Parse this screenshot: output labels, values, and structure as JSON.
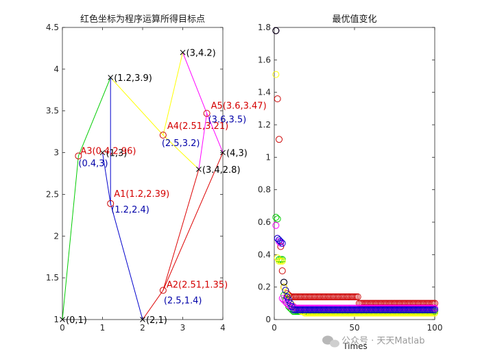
{
  "chart_data": [
    {
      "type": "line",
      "title": "红色坐标为程序运算所得目标点",
      "xlim": [
        0,
        4
      ],
      "ylim": [
        1,
        4.5
      ],
      "xticks": [
        "0",
        "1",
        "2",
        "3",
        "4"
      ],
      "yticks": [
        "1",
        "1.5",
        "2",
        "2.5",
        "3",
        "3.5",
        "4",
        "4.5"
      ],
      "grid": false,
      "points": [
        {
          "x": 0,
          "y": 1,
          "label": "(0,1)"
        },
        {
          "x": 1,
          "y": 3,
          "label": "(1,3)"
        },
        {
          "x": 1.2,
          "y": 3.9,
          "label": "(1.2,3.9)"
        },
        {
          "x": 2,
          "y": 1,
          "label": "(2,1)"
        },
        {
          "x": 3,
          "y": 4.2,
          "label": "(3,4.2)"
        },
        {
          "x": 3.4,
          "y": 2.8,
          "label": "(3.4,2.8)"
        },
        {
          "x": 4,
          "y": 3,
          "label": "(4,3)"
        }
      ],
      "targets": [
        {
          "x": 1.2,
          "y": 2.39,
          "label": "A1(1.2,2.39)",
          "alt_label": "(1.2,2.4)"
        },
        {
          "x": 2.51,
          "y": 1.35,
          "label": "A2(2.51,1.35)",
          "alt_label": "(2.5,1.4)"
        },
        {
          "x": 0.4,
          "y": 2.96,
          "label": "A3(0.4,2.96)",
          "alt_label": "(0.4,3)"
        },
        {
          "x": 2.51,
          "y": 3.21,
          "label": "A4(2.51,3.21)",
          "alt_label": "(2.5,3.2)"
        },
        {
          "x": 3.6,
          "y": 3.47,
          "label": "A5(3.6,3.47)",
          "alt_label": "(3.6,3.5)"
        }
      ],
      "series": [
        {
          "color": "#00cc00",
          "points": [
            [
              0,
              1
            ],
            [
              0.4,
              2.96
            ],
            [
              1.2,
              3.9
            ]
          ]
        },
        {
          "color": "#0000cc",
          "points": [
            [
              1.2,
              3.9
            ],
            [
              1.2,
              2.39
            ],
            [
              2,
              1
            ]
          ]
        },
        {
          "color": "#0000cc",
          "points": [
            [
              1,
              3
            ],
            [
              1.2,
              2.39
            ]
          ]
        },
        {
          "color": "#ffff00",
          "points": [
            [
              1.2,
              3.9
            ],
            [
              2.51,
              3.21
            ],
            [
              3,
              4.2
            ]
          ]
        },
        {
          "color": "#ffff00",
          "points": [
            [
              2.51,
              3.21
            ],
            [
              3.4,
              2.8
            ]
          ]
        },
        {
          "color": "#ff00ff",
          "points": [
            [
              3,
              4.2
            ],
            [
              3.6,
              3.47
            ],
            [
              4,
              3
            ]
          ]
        },
        {
          "color": "#ff00ff",
          "points": [
            [
              3.6,
              3.47
            ],
            [
              3.4,
              2.8
            ]
          ]
        },
        {
          "color": "#dd0000",
          "points": [
            [
              2,
              1
            ],
            [
              2.51,
              1.35
            ],
            [
              3.4,
              2.8
            ]
          ]
        },
        {
          "color": "#dd0000",
          "points": [
            [
              2.51,
              1.35
            ],
            [
              4,
              3
            ]
          ]
        }
      ],
      "label_colors": {
        "target": "#d40000",
        "alt": "#0000a8"
      }
    },
    {
      "type": "scatter",
      "title": "最优值变化",
      "xlabel": "Times",
      "xlim": [
        0,
        100
      ],
      "ylim": [
        0,
        1.8
      ],
      "xticks": [
        "0",
        "50",
        "100"
      ],
      "yticks": [
        "0",
        "0.2",
        "0.4",
        "0.6",
        "0.8",
        "1",
        "1.2",
        "1.4",
        "1.6",
        "1.8"
      ],
      "grid": false,
      "series": [
        {
          "color": "#cc0000",
          "values": [
            1.78,
            1.36,
            1.11,
            0.45,
            0.3,
            0.2,
            0.18,
            0.16,
            0.15,
            0.14,
            0.14,
            0.14,
            0.14,
            0.14,
            0.14,
            0.14,
            0.14,
            0.14,
            0.14,
            0.14,
            0.14,
            0.14,
            0.14,
            0.14,
            0.14,
            0.14,
            0.14,
            0.14,
            0.14,
            0.14,
            0.14,
            0.14,
            0.14,
            0.14,
            0.14,
            0.14,
            0.14,
            0.14,
            0.14,
            0.14,
            0.14,
            0.14,
            0.14,
            0.14,
            0.14,
            0.14,
            0.14,
            0.14,
            0.14,
            0.14,
            0.14,
            0.14,
            0.1,
            0.1,
            0.1,
            0.1,
            0.1,
            0.1,
            0.1,
            0.1,
            0.1,
            0.1,
            0.1,
            0.1,
            0.1,
            0.1,
            0.1,
            0.1,
            0.1,
            0.1,
            0.1,
            0.1,
            0.1,
            0.1,
            0.1,
            0.1,
            0.1,
            0.1,
            0.1,
            0.1,
            0.1,
            0.1,
            0.1,
            0.1,
            0.1,
            0.1,
            0.1,
            0.1,
            0.1,
            0.1,
            0.1,
            0.1,
            0.1,
            0.1,
            0.1,
            0.1,
            0.1,
            0.1,
            0.1,
            0.1
          ]
        },
        {
          "color": "#00cc00",
          "values": [
            0.63,
            0.62,
            0.37,
            0.37,
            0.37,
            0.15,
            0.12,
            0.1,
            0.08,
            0.07,
            0.06,
            0.05,
            0.05,
            0.05,
            0.05,
            0.05,
            0.05,
            0.05,
            0.05,
            0.05,
            0.05,
            0.05,
            0.05,
            0.05,
            0.05,
            0.05,
            0.05,
            0.05,
            0.05,
            0.05,
            0.05,
            0.05,
            0.05,
            0.05,
            0.05,
            0.05,
            0.05,
            0.05,
            0.05,
            0.05,
            0.05,
            0.05,
            0.05,
            0.05,
            0.05,
            0.05,
            0.05,
            0.05,
            0.05,
            0.05,
            0.05,
            0.05,
            0.05,
            0.05,
            0.05,
            0.05,
            0.05,
            0.05,
            0.05,
            0.05,
            0.05,
            0.05,
            0.05,
            0.05,
            0.05,
            0.05,
            0.05,
            0.05,
            0.05,
            0.05,
            0.05,
            0.05,
            0.05,
            0.05,
            0.05,
            0.05,
            0.05,
            0.05,
            0.05,
            0.05,
            0.05,
            0.05,
            0.05,
            0.05,
            0.05,
            0.05,
            0.05,
            0.05,
            0.05,
            0.05,
            0.05,
            0.05,
            0.05,
            0.05,
            0.05,
            0.05,
            0.05,
            0.05,
            0.05,
            0.05
          ]
        },
        {
          "color": "#ffff00",
          "values": [
            1.51,
            0.38,
            0.36,
            0.36,
            0.36,
            0.2,
            0.18,
            0.15,
            0.12,
            0.1,
            0.09,
            0.08,
            0.07,
            0.07,
            0.07,
            0.06,
            0.05,
            0.05,
            0.04,
            0.04,
            0.04,
            0.04,
            0.04,
            0.04,
            0.04,
            0.04,
            0.04,
            0.04,
            0.04,
            0.04,
            0.04,
            0.04,
            0.04,
            0.04,
            0.04,
            0.04,
            0.04,
            0.04,
            0.04,
            0.04,
            0.04,
            0.04,
            0.04,
            0.04,
            0.04,
            0.04,
            0.04,
            0.04,
            0.04,
            0.04,
            0.04,
            0.04,
            0.04,
            0.04,
            0.04,
            0.04,
            0.04,
            0.04,
            0.04,
            0.04,
            0.04,
            0.04,
            0.04,
            0.04,
            0.04,
            0.04,
            0.04,
            0.04,
            0.04,
            0.04,
            0.04,
            0.04,
            0.04,
            0.04,
            0.04,
            0.04,
            0.04,
            0.04,
            0.04,
            0.04,
            0.04,
            0.04,
            0.04,
            0.04,
            0.04,
            0.04,
            0.04,
            0.04,
            0.04,
            0.04,
            0.04,
            0.04,
            0.04,
            0.04,
            0.04,
            0.04,
            0.04,
            0.04,
            0.04,
            0.04
          ]
        },
        {
          "color": "#ff00ff",
          "values": [
            0.58,
            0.5,
            0.48,
            0.47,
            0.13,
            0.12,
            0.11,
            0.1,
            0.09,
            0.08,
            0.08,
            0.08,
            0.07,
            0.07,
            0.07,
            0.07,
            0.07,
            0.07,
            0.07,
            0.07,
            0.07,
            0.07,
            0.07,
            0.07,
            0.07,
            0.07,
            0.07,
            0.07,
            0.07,
            0.07,
            0.07,
            0.07,
            0.07,
            0.07,
            0.07,
            0.07,
            0.07,
            0.07,
            0.07,
            0.07,
            0.07,
            0.07,
            0.07,
            0.07,
            0.07,
            0.07,
            0.07,
            0.07,
            0.07,
            0.07,
            0.07,
            0.07,
            0.07,
            0.07,
            0.07,
            0.07,
            0.07,
            0.07,
            0.07,
            0.07,
            0.07,
            0.07,
            0.07,
            0.07,
            0.07,
            0.07,
            0.07,
            0.07,
            0.07,
            0.07,
            0.07,
            0.07,
            0.07,
            0.07,
            0.07,
            0.07,
            0.07,
            0.07,
            0.07,
            0.07,
            0.07,
            0.07,
            0.07,
            0.07,
            0.07,
            0.07,
            0.07,
            0.07,
            0.07,
            0.07,
            0.07,
            0.07,
            0.07,
            0.07,
            0.07,
            0.07,
            0.07,
            0.07,
            0.07,
            0.07
          ]
        },
        {
          "color": "#0000cc",
          "values": [
            1.78,
            0.5,
            0.49,
            0.48,
            0.47,
            0.23,
            0.18,
            0.14,
            0.12,
            0.1,
            0.08,
            0.06,
            0.06,
            0.06,
            0.06,
            0.06,
            0.06,
            0.06,
            0.06,
            0.06,
            0.06,
            0.06,
            0.06,
            0.06,
            0.06,
            0.06,
            0.06,
            0.06,
            0.06,
            0.06,
            0.06,
            0.06,
            0.06,
            0.06,
            0.06,
            0.06,
            0.06,
            0.06,
            0.06,
            0.06,
            0.06,
            0.06,
            0.06,
            0.06,
            0.06,
            0.06,
            0.06,
            0.06,
            0.06,
            0.06,
            0.06,
            0.06,
            0.06,
            0.06,
            0.06,
            0.06,
            0.06,
            0.06,
            0.06,
            0.06,
            0.06,
            0.06,
            0.06,
            0.06,
            0.06,
            0.06,
            0.06,
            0.06,
            0.06,
            0.06,
            0.06,
            0.06,
            0.06,
            0.06,
            0.06,
            0.06,
            0.06,
            0.06,
            0.06,
            0.06,
            0.06,
            0.06,
            0.06,
            0.06,
            0.06,
            0.06,
            0.06,
            0.06,
            0.06,
            0.06,
            0.06,
            0.06,
            0.06,
            0.06,
            0.06,
            0.06,
            0.06,
            0.06,
            0.06,
            0.06
          ]
        },
        {
          "color": "#000000",
          "values": [
            1.78,
            null,
            null,
            null,
            null,
            0.23,
            null,
            null,
            null,
            null
          ]
        }
      ]
    }
  ],
  "watermark": {
    "text": "公众号 · 天天Matlab",
    "icon": "wechat-icon"
  }
}
